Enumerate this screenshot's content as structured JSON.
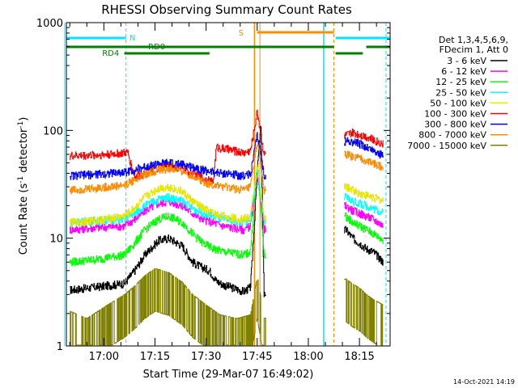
{
  "chart_data": {
    "type": "line",
    "title": "RHESSI Observing Summary Count Rates",
    "xlabel": "Start Time (29-Mar-07 16:49:02)",
    "ylabel": "Count Rate (s",
    "ylabel_sup1": "-1",
    "ylabel_mid": " detector",
    "ylabel_sup2": "-1",
    "ylabel_end": ")",
    "x_range_min": [
      0,
      95
    ],
    "y_scale": "log",
    "ylim": [
      1,
      1000
    ],
    "x_ticks": [
      {
        "label": "17:00",
        "min": 11
      },
      {
        "label": "17:15",
        "min": 26
      },
      {
        "label": "17:30",
        "min": 41
      },
      {
        "label": "17:45",
        "min": 56
      },
      {
        "label": "18:00",
        "min": 71
      },
      {
        "label": "18:15",
        "min": 86
      }
    ],
    "y_ticks": [
      {
        "label": "1",
        "v": 1
      },
      {
        "label": "10",
        "v": 10
      },
      {
        "label": "100",
        "v": 100
      },
      {
        "label": "1000",
        "v": 1000
      }
    ],
    "legend": {
      "header": [
        "Det 1,3,4,5,6,9,",
        "FDecim 1, Att 0"
      ],
      "entries": [
        {
          "label": "3 - 6 keV",
          "color": "#000000"
        },
        {
          "label": "6 - 12 keV",
          "color": "#ff00ff"
        },
        {
          "label": "12 - 25 keV",
          "color": "#00ff00"
        },
        {
          "label": "25 - 50 keV",
          "color": "#00ffff"
        },
        {
          "label": "50 - 100 keV",
          "color": "#e6e600"
        },
        {
          "label": "100 - 300 keV",
          "color": "#ff0000"
        },
        {
          "label": "300 - 800 keV",
          "color": "#0000ff"
        },
        {
          "label": "800 - 7000 keV",
          "color": "#ff8c00"
        },
        {
          "label": "7000 - 15000 keV",
          "color": "#808000"
        }
      ]
    },
    "annotations": [
      {
        "label": "N",
        "color": "#00e5ff"
      },
      {
        "label": "S",
        "color": "#ff8c00"
      },
      {
        "label": "RD0",
        "color": "#008000"
      },
      {
        "label": "RD4",
        "color": "#008000"
      }
    ],
    "series": [
      {
        "name": "3 - 6 keV",
        "color": "#000000",
        "points": [
          [
            1,
            3.3
          ],
          [
            8,
            3.5
          ],
          [
            17,
            3.8
          ],
          [
            20,
            5
          ],
          [
            23,
            7
          ],
          [
            27,
            9.5
          ],
          [
            30,
            10
          ],
          [
            34,
            8.5
          ],
          [
            37,
            6
          ],
          [
            39,
            5.5
          ],
          [
            42,
            5
          ],
          [
            44,
            4
          ],
          [
            46,
            3.7
          ],
          [
            52,
            3.2
          ],
          [
            54,
            3.5
          ],
          [
            56,
            40
          ],
          [
            57,
            120
          ],
          [
            58,
            3
          ],
          [
            82,
            12
          ],
          [
            84,
            10
          ],
          [
            86,
            9
          ],
          [
            88,
            8
          ],
          [
            90,
            7.5
          ],
          [
            93,
            6
          ]
        ]
      },
      {
        "name": "6 - 12 keV",
        "color": "#ff00ff",
        "points": [
          [
            1,
            12
          ],
          [
            8,
            12.5
          ],
          [
            17,
            13
          ],
          [
            20,
            15
          ],
          [
            23,
            18
          ],
          [
            27,
            21
          ],
          [
            30,
            22
          ],
          [
            34,
            20
          ],
          [
            37,
            17
          ],
          [
            40,
            15
          ],
          [
            43,
            14
          ],
          [
            46,
            13
          ],
          [
            52,
            12
          ],
          [
            54,
            13
          ],
          [
            56,
            40
          ],
          [
            58,
            12
          ],
          [
            82,
            20
          ],
          [
            84,
            18
          ],
          [
            86,
            17
          ],
          [
            88,
            16
          ],
          [
            90,
            15
          ],
          [
            93,
            13
          ]
        ]
      },
      {
        "name": "12 - 25 keV",
        "color": "#00ff00",
        "points": [
          [
            1,
            6
          ],
          [
            8,
            6.3
          ],
          [
            17,
            7
          ],
          [
            20,
            9
          ],
          [
            23,
            12
          ],
          [
            27,
            15
          ],
          [
            30,
            16
          ],
          [
            34,
            14
          ],
          [
            37,
            11
          ],
          [
            40,
            9
          ],
          [
            43,
            8
          ],
          [
            46,
            7.5
          ],
          [
            52,
            7
          ],
          [
            54,
            7.5
          ],
          [
            56,
            50
          ],
          [
            58,
            7
          ],
          [
            82,
            16
          ],
          [
            84,
            14
          ],
          [
            86,
            13
          ],
          [
            88,
            12
          ],
          [
            90,
            11
          ],
          [
            93,
            9.5
          ]
        ]
      },
      {
        "name": "25 - 50 keV",
        "color": "#00ffff",
        "points": [
          [
            1,
            14
          ],
          [
            8,
            14.5
          ],
          [
            17,
            15
          ],
          [
            20,
            17
          ],
          [
            23,
            20
          ],
          [
            27,
            23
          ],
          [
            30,
            24
          ],
          [
            34,
            22
          ],
          [
            37,
            19
          ],
          [
            40,
            17
          ],
          [
            43,
            16
          ],
          [
            46,
            15
          ],
          [
            52,
            14
          ],
          [
            54,
            15
          ],
          [
            56,
            45
          ],
          [
            58,
            14
          ],
          [
            82,
            24
          ],
          [
            84,
            22
          ],
          [
            86,
            21
          ],
          [
            88,
            20
          ],
          [
            90,
            19
          ],
          [
            93,
            17
          ]
        ]
      },
      {
        "name": "50 - 100 keV",
        "color": "#e6e600",
        "points": [
          [
            1,
            14
          ],
          [
            8,
            14.5
          ],
          [
            17,
            16
          ],
          [
            20,
            19
          ],
          [
            23,
            24
          ],
          [
            27,
            29
          ],
          [
            30,
            30
          ],
          [
            34,
            27
          ],
          [
            37,
            22
          ],
          [
            40,
            19
          ],
          [
            43,
            17
          ],
          [
            46,
            16
          ],
          [
            52,
            15
          ],
          [
            54,
            16
          ],
          [
            56,
            48
          ],
          [
            58,
            15
          ],
          [
            82,
            30
          ],
          [
            84,
            28
          ],
          [
            86,
            26
          ],
          [
            88,
            25
          ],
          [
            90,
            24
          ],
          [
            93,
            22
          ]
        ]
      },
      {
        "name": "100 - 300 keV",
        "color": "#ff0000",
        "points": [
          [
            1,
            58
          ],
          [
            8,
            59
          ],
          [
            12,
            60
          ],
          [
            18,
            62
          ],
          [
            20,
            37
          ],
          [
            23,
            40
          ],
          [
            27,
            45
          ],
          [
            30,
            47
          ],
          [
            34,
            44
          ],
          [
            37,
            40
          ],
          [
            40,
            36
          ],
          [
            43,
            33
          ],
          [
            44,
            70
          ],
          [
            48,
            66
          ],
          [
            52,
            62
          ],
          [
            54,
            65
          ],
          [
            56,
            150
          ],
          [
            58,
            60
          ],
          [
            82,
            90
          ],
          [
            84,
            95
          ],
          [
            86,
            92
          ],
          [
            88,
            88
          ],
          [
            90,
            82
          ],
          [
            93,
            75
          ]
        ]
      },
      {
        "name": "300 - 800 keV",
        "color": "#0000ff",
        "points": [
          [
            1,
            38
          ],
          [
            8,
            39
          ],
          [
            17,
            41
          ],
          [
            20,
            43
          ],
          [
            23,
            46
          ],
          [
            27,
            49
          ],
          [
            30,
            50
          ],
          [
            34,
            48
          ],
          [
            37,
            46
          ],
          [
            40,
            43
          ],
          [
            43,
            41
          ],
          [
            46,
            40
          ],
          [
            52,
            38
          ],
          [
            54,
            40
          ],
          [
            56,
            90
          ],
          [
            58,
            38
          ],
          [
            82,
            80
          ],
          [
            84,
            78
          ],
          [
            86,
            75
          ],
          [
            88,
            70
          ],
          [
            90,
            65
          ],
          [
            93,
            58
          ]
        ]
      },
      {
        "name": "800 - 7000 keV",
        "color": "#ff8c00",
        "points": [
          [
            1,
            28
          ],
          [
            8,
            29
          ],
          [
            17,
            31
          ],
          [
            20,
            35
          ],
          [
            23,
            39
          ],
          [
            27,
            43
          ],
          [
            30,
            44
          ],
          [
            34,
            42
          ],
          [
            37,
            38
          ],
          [
            40,
            34
          ],
          [
            43,
            31
          ],
          [
            46,
            30
          ],
          [
            52,
            28
          ],
          [
            54,
            30
          ],
          [
            56,
            80
          ],
          [
            58,
            28
          ],
          [
            82,
            60
          ],
          [
            84,
            57
          ],
          [
            86,
            55
          ],
          [
            88,
            52
          ],
          [
            90,
            50
          ],
          [
            93,
            45
          ]
        ]
      },
      {
        "name": "7000 - 15000 keV",
        "color": "#808000",
        "points": [
          [
            1,
            1.4
          ],
          [
            6,
            1.2
          ],
          [
            12,
            1.6
          ],
          [
            17,
            2.0
          ],
          [
            20,
            2.4
          ],
          [
            23,
            3.0
          ],
          [
            26,
            3.5
          ],
          [
            30,
            3.2
          ],
          [
            34,
            2.6
          ],
          [
            37,
            2.0
          ],
          [
            41,
            1.6
          ],
          [
            45,
            1.3
          ],
          [
            50,
            1.2
          ],
          [
            54,
            1.3
          ],
          [
            56,
            3.0
          ],
          [
            58,
            1.2
          ],
          [
            82,
            2.8
          ],
          [
            84,
            2.5
          ],
          [
            86,
            2.3
          ],
          [
            88,
            2.0
          ],
          [
            90,
            1.8
          ],
          [
            93,
            1.6
          ]
        ]
      }
    ]
  },
  "footer": {
    "timestamp": "14-Oct-2021 14:19"
  }
}
